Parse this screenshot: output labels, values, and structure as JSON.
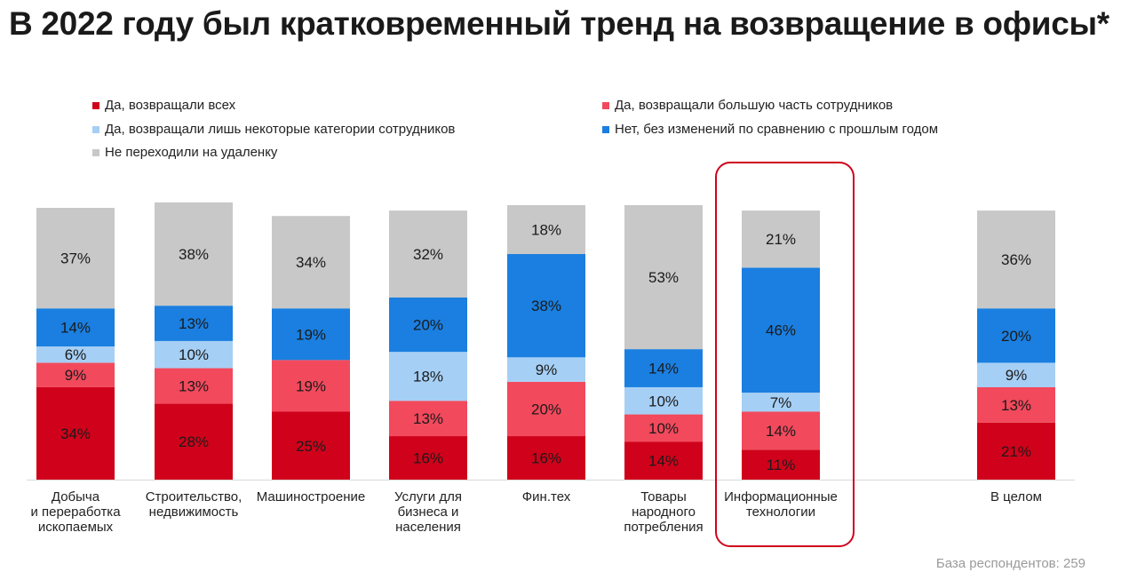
{
  "title": "В 2022 году был кратковременный тренд на возвращение в офисы*",
  "footer": "База респондентов: 259",
  "colors": {
    "all": "#d0021b",
    "most": "#f2495c",
    "some": "#a6cff5",
    "none": "#1a7fe0",
    "remote_no": "#c8c8c8",
    "highlight": "#d0021b"
  },
  "chart_data": {
    "type": "bar",
    "stacked": true,
    "percent": true,
    "categories": [
      "Добыча\nи переработка\nископаемых",
      "Строительство,\nнедвижимость",
      "Машиностроение",
      "Услуги для\nбизнеса и\nнаселения",
      "Фин.тех",
      "Товары\nнародного\nпотребления",
      "Информационные\nтехнологии",
      "В целом"
    ],
    "series": [
      {
        "key": "all",
        "name": "Да, возвращали всех",
        "values": [
          34,
          28,
          25,
          16,
          16,
          14,
          11,
          21
        ]
      },
      {
        "key": "most",
        "name": "Да, возвращали большую часть сотрудников",
        "values": [
          9,
          13,
          19,
          13,
          20,
          10,
          14,
          13
        ]
      },
      {
        "key": "some",
        "name": "Да, возвращали лишь некоторые категории сотрудников",
        "values": [
          6,
          10,
          0,
          18,
          9,
          10,
          7,
          9
        ]
      },
      {
        "key": "none",
        "name": "Нет, без изменений по сравнению с прошлым годом",
        "values": [
          14,
          13,
          19,
          20,
          38,
          14,
          46,
          20
        ]
      },
      {
        "key": "remote_no",
        "name": "Не переходили на удаленку",
        "values": [
          37,
          38,
          34,
          32,
          18,
          53,
          21,
          36
        ]
      }
    ],
    "value_suffix": "%",
    "highlighted_category": "Информационные\nтехнологии",
    "legend_position": "top",
    "grid": false
  }
}
